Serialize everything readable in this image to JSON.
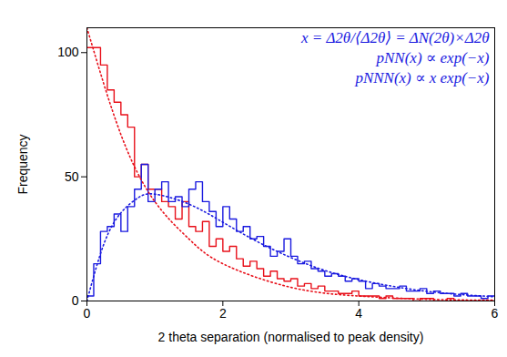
{
  "chart_data": {
    "type": "histogram",
    "x_label": "2 theta separation (normalised to peak density)",
    "y_label": "Frequency",
    "annotations": [
      "x = Δ2θ/⟨Δ2θ⟩ = ΔN(2θ)×Δ2θ",
      "pNN(x) ∝ exp(−x)",
      "pNNN(x) ∝ x exp(−x)"
    ],
    "xlim": [
      0,
      6
    ],
    "xticks": [
      0,
      2,
      4,
      6
    ],
    "ylim": [
      0,
      110
    ],
    "yticks": [
      0,
      50,
      100
    ],
    "bins": [
      0,
      0.1,
      0.2,
      0.3,
      0.4,
      0.5,
      0.6,
      0.7,
      0.8,
      0.9,
      1,
      1.1,
      1.2,
      1.3,
      1.4,
      1.5,
      1.6,
      1.7,
      1.8,
      1.9,
      2,
      2.1,
      2.2,
      2.3,
      2.4,
      2.5,
      2.6,
      2.7,
      2.8,
      2.9,
      3,
      3.1,
      3.2,
      3.3,
      3.4,
      3.5,
      3.6,
      3.7,
      3.8,
      3.9,
      4,
      4.1,
      4.2,
      4.3,
      4.4,
      4.5,
      4.6,
      4.7,
      4.8,
      4.9,
      5,
      5.1,
      5.2,
      5.3,
      5.4,
      5.5,
      5.6,
      5.7,
      5.8,
      5.9,
      6
    ],
    "series": [
      {
        "type": "step",
        "color": "#e8101a",
        "values": [
          102,
          102,
          95,
          85,
          80,
          75,
          70,
          50,
          55,
          45,
          45,
          40,
          38,
          33,
          40,
          30,
          28,
          32,
          22,
          25,
          20,
          22,
          17,
          14,
          16,
          13,
          10,
          12,
          9,
          8,
          9,
          6,
          7,
          5,
          6,
          4,
          4,
          3,
          3,
          4,
          2,
          2,
          2,
          1,
          2,
          1,
          1,
          1,
          0,
          1,
          1,
          0,
          0,
          1,
          0,
          0,
          0,
          0,
          0,
          0
        ]
      },
      {
        "type": "step",
        "color": "#1a1adf",
        "values": [
          2,
          15,
          28,
          30,
          35,
          28,
          38,
          45,
          55,
          40,
          45,
          48,
          40,
          42,
          38,
          45,
          48,
          40,
          36,
          30,
          38,
          33,
          28,
          30,
          25,
          26,
          22,
          18,
          20,
          25,
          18,
          15,
          16,
          13,
          12,
          10,
          11,
          10,
          8,
          9,
          8,
          5,
          7,
          6,
          5,
          5,
          6,
          4,
          4,
          5,
          3,
          4,
          3,
          3,
          2,
          3,
          2,
          2,
          1,
          2
        ]
      },
      {
        "type": "line",
        "line_style": "dotted",
        "color": "#e8101a",
        "x": [
          0,
          0.5,
          1,
          1.5,
          2,
          3,
          4,
          5,
          6
        ],
        "values": [
          110,
          67,
          40,
          25,
          15,
          5.5,
          2,
          0.7,
          0.3
        ]
      },
      {
        "type": "line",
        "line_style": "dotted",
        "color": "#1a1adf",
        "x": [
          0,
          0.25,
          0.5,
          0.75,
          1,
          1.5,
          2,
          2.5,
          3,
          3.5,
          4,
          4.5,
          5,
          5.5,
          6
        ],
        "values": [
          0,
          23,
          35.5,
          41.5,
          43,
          39,
          31.7,
          24,
          17.5,
          12.3,
          8.6,
          5.9,
          3.9,
          2.6,
          1.7
        ]
      }
    ]
  }
}
